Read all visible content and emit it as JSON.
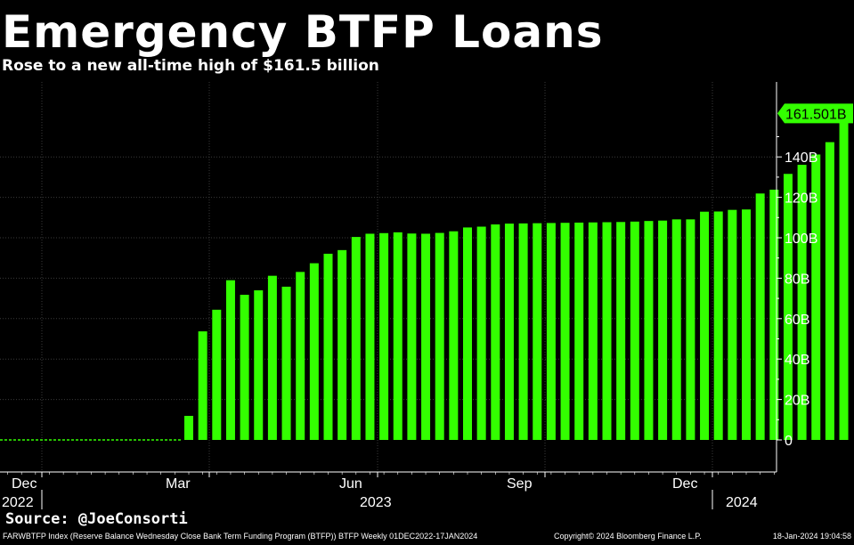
{
  "header": {
    "title": "Emergency BTFP Loans",
    "subtitle": "Rose to a new all-time high of $161.5 billion"
  },
  "footer": {
    "source": "Source: @JoeConsorti",
    "index_description": "FARWBTFP Index (Reserve Balance Wednesday Close Bank Term Funding Program (BTFP)) BTFP  Weekly 01DEC2022-17JAN2024",
    "copyright": "Copyright© 2024 Bloomberg Finance L.P.",
    "timestamp": "18-Jan-2024 19:04:58"
  },
  "colors": {
    "bar": "#33ff00",
    "background": "#000000",
    "axis": "#ffffff",
    "grid": "#3a3a3a"
  },
  "chart_data": {
    "type": "bar",
    "title": "Emergency BTFP Loans",
    "subtitle": "Rose to a new all-time high of $161.5 billion",
    "ylim": [
      -16,
      178
    ],
    "yticks": [
      0,
      20,
      40,
      60,
      80,
      100,
      120,
      140
    ],
    "ytick_labels": [
      "0",
      "20B",
      "40B",
      "60B",
      "80B",
      "100B",
      "120B",
      "140B"
    ],
    "last_value_label": "161.501B",
    "grid": true,
    "x_month_labels": [
      "Dec",
      "Mar",
      "Jun",
      "Sep",
      "Dec"
    ],
    "x_year_labels": [
      "2022",
      "2023",
      "2024"
    ],
    "zero_line_weeks": 14,
    "values": [
      11.9,
      53.7,
      64.4,
      79.0,
      71.8,
      74.0,
      81.2,
      75.8,
      83.1,
      87.4,
      92.1,
      93.9,
      100.4,
      102.0,
      102.3,
      102.7,
      102.1,
      102.0,
      102.4,
      103.2,
      105.1,
      105.5,
      106.6,
      107.0,
      107.1,
      107.2,
      107.3,
      107.4,
      107.5,
      107.6,
      107.7,
      107.8,
      108.0,
      108.3,
      108.5,
      109.1,
      109.1,
      112.9,
      113.0,
      113.8,
      114.0,
      121.9,
      123.8,
      131.6,
      136.1,
      141.2,
      147.3,
      161.5
    ]
  }
}
